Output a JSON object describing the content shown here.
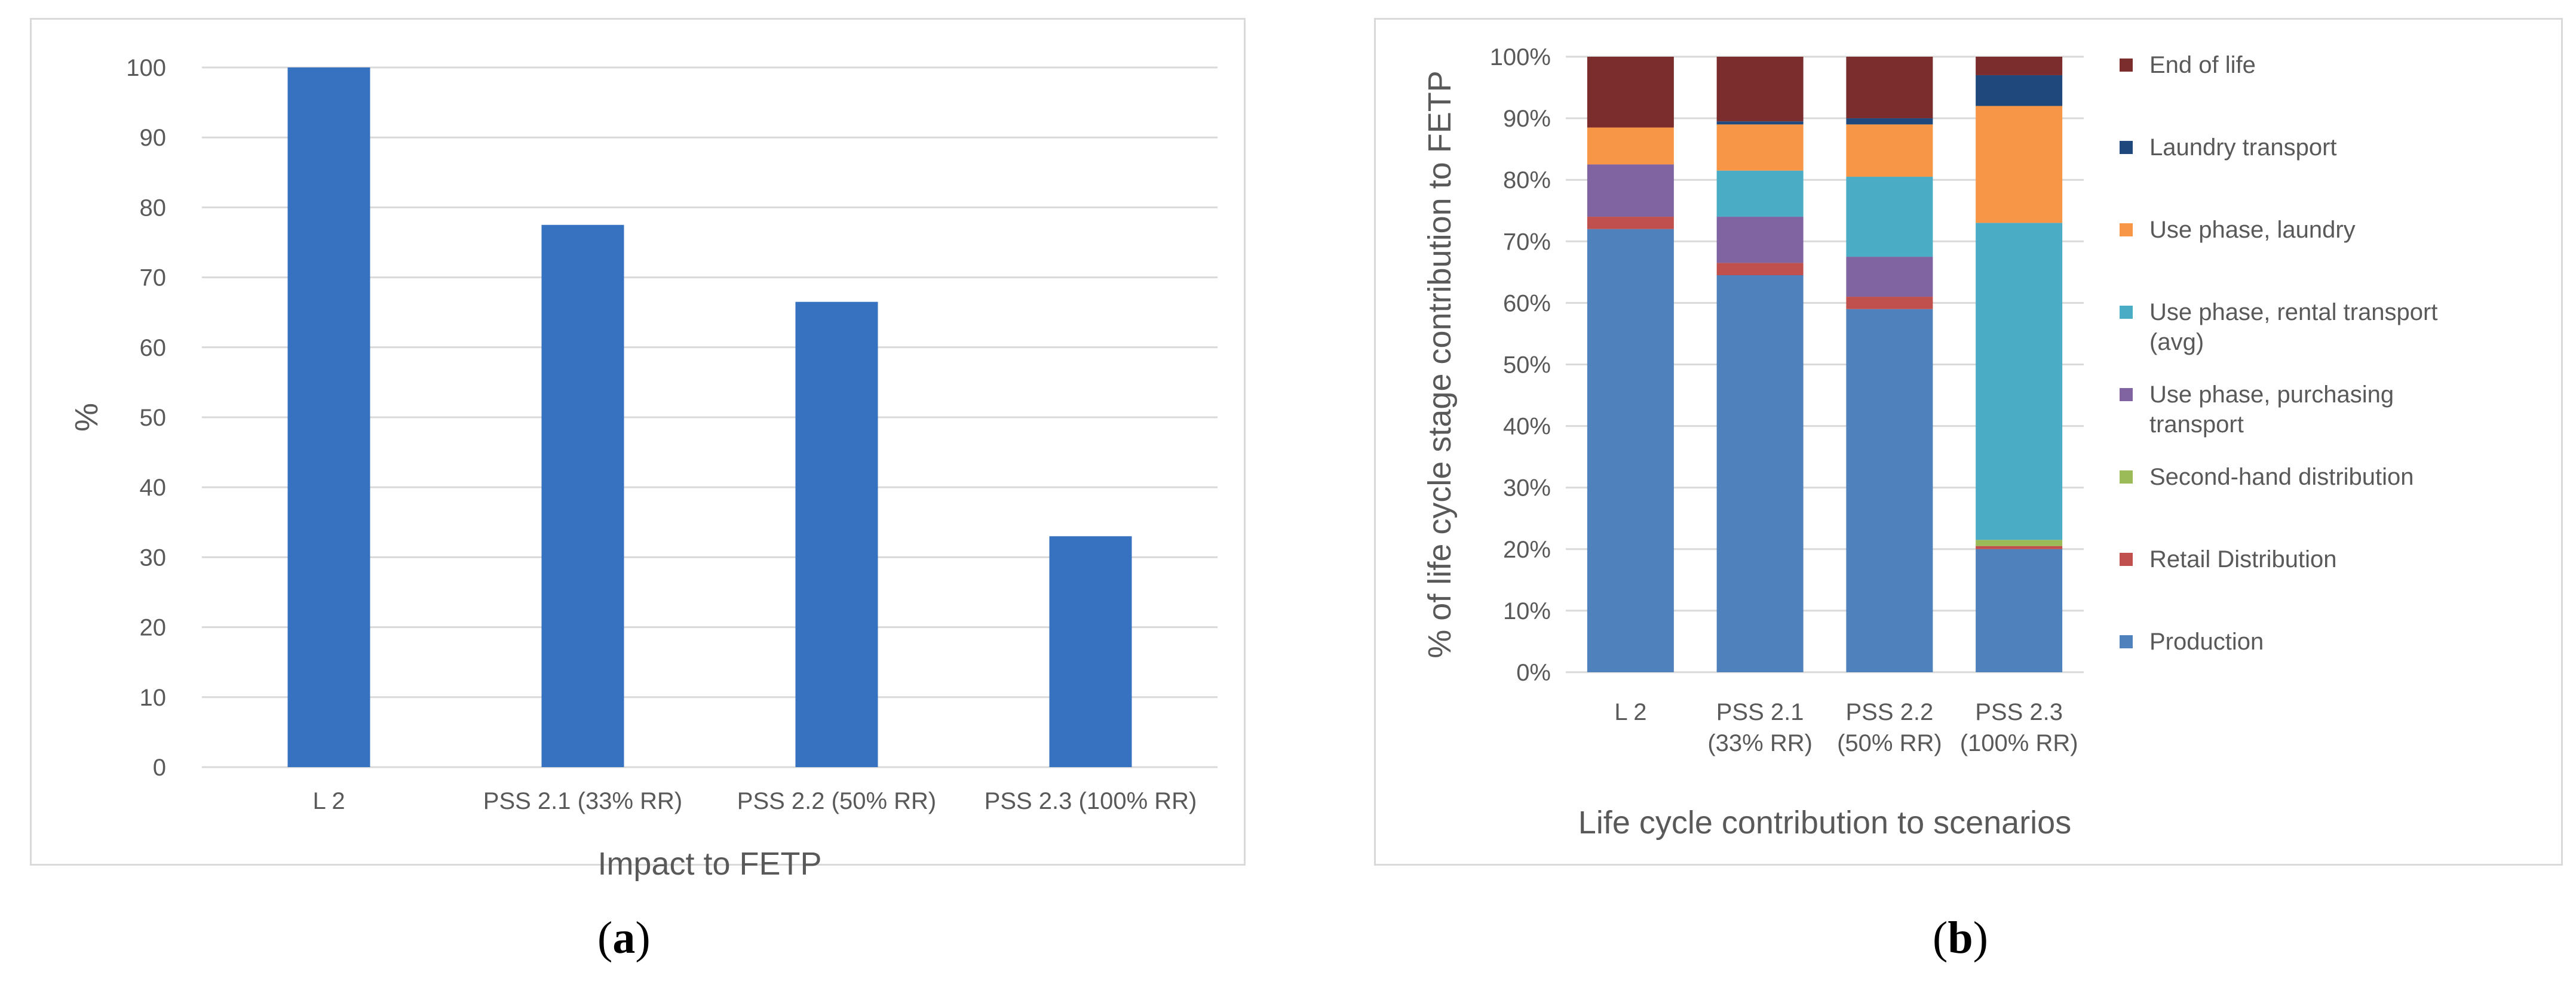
{
  "chart_data": [
    {
      "type": "bar",
      "title": "",
      "xlabel": "Impact to FETP",
      "ylabel": "%",
      "ylim": [
        0,
        100
      ],
      "yticks": [
        "0",
        "10",
        "20",
        "30",
        "40",
        "50",
        "60",
        "70",
        "80",
        "90",
        "100"
      ],
      "categories": [
        "L 2",
        "PSS 2.1 (33% RR)",
        "PSS 2.2 (50% RR)",
        "PSS 2.3 (100% RR)"
      ],
      "values": [
        100,
        77.5,
        66.5,
        33
      ],
      "color": "#3672c0",
      "grid": true,
      "caption": "(a)"
    },
    {
      "type": "bar",
      "stacked": true,
      "title": "",
      "xlabel": "Life cycle contribution to scenarios",
      "ylabel": "% of life cycle stage contribution to FETP",
      "ylim": [
        0,
        100
      ],
      "yticks": [
        "0%",
        "10%",
        "20%",
        "30%",
        "40%",
        "50%",
        "60%",
        "70%",
        "80%",
        "90%",
        "100%"
      ],
      "categories": [
        [
          "L 2"
        ],
        [
          "PSS 2.1",
          "(33% RR)"
        ],
        [
          "PSS 2.2",
          "(50% RR)"
        ],
        [
          "PSS 2.3",
          "(100% RR)"
        ]
      ],
      "series": [
        {
          "name": "Production",
          "color": "#4f81bd",
          "values": [
            72,
            64.5,
            59,
            20
          ]
        },
        {
          "name": "Retail Distribution",
          "color": "#c0504d",
          "values": [
            2,
            2,
            2,
            0.5
          ]
        },
        {
          "name": "Second-hand distribution",
          "color": "#9bbb59",
          "values": [
            0,
            0,
            0,
            1
          ]
        },
        {
          "name": "Use phase, purchasing transport",
          "color": "#8064a2",
          "values": [
            8.5,
            7.5,
            6.5,
            0
          ]
        },
        {
          "name": "Use phase, rental transport (avg)",
          "color": "#4bacc6",
          "values": [
            0,
            7.5,
            13,
            51.5
          ]
        },
        {
          "name": "Use phase, laundry",
          "color": "#f79646",
          "values": [
            6,
            7.5,
            8.5,
            19
          ]
        },
        {
          "name": "Laundry transport",
          "color": "#1f497d",
          "values": [
            0,
            0.5,
            1,
            5
          ]
        },
        {
          "name": "End of life",
          "color": "#7b2c2c",
          "values": [
            11.5,
            10.5,
            10,
            3
          ]
        }
      ],
      "legend": [
        {
          "label_lines": [
            "End of life"
          ],
          "color": "#7b2c2c"
        },
        {
          "label_lines": [
            "Laundry transport"
          ],
          "color": "#1f497d"
        },
        {
          "label_lines": [
            "Use phase, laundry"
          ],
          "color": "#f79646"
        },
        {
          "label_lines": [
            "Use phase, rental transport",
            "(avg)"
          ],
          "color": "#4bacc6"
        },
        {
          "label_lines": [
            "Use phase, purchasing",
            "transport"
          ],
          "color": "#8064a2"
        },
        {
          "label_lines": [
            "Second-hand distribution"
          ],
          "color": "#9bbb59"
        },
        {
          "label_lines": [
            "Retail Distribution"
          ],
          "color": "#c0504d"
        },
        {
          "label_lines": [
            "Production"
          ],
          "color": "#4f81bd"
        }
      ],
      "legend_position": "right",
      "grid": true,
      "caption": "(b)"
    }
  ]
}
